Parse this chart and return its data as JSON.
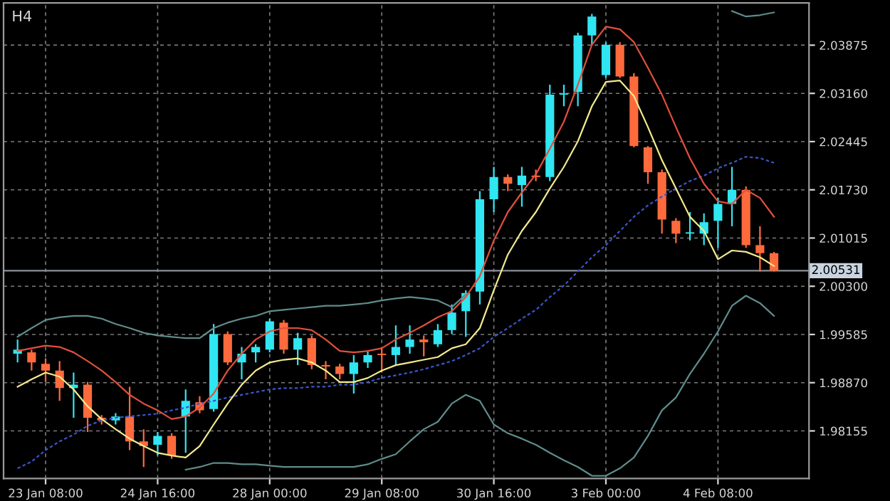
{
  "chart_data": {
    "type": "candlestick",
    "title": "H4",
    "categories": [
      null,
      null,
      "23 Jan 08:00",
      null,
      null,
      null,
      null,
      null,
      null,
      null,
      "24 Jan 16:00",
      null,
      null,
      null,
      null,
      null,
      null,
      null,
      "28 Jan 00:00",
      null,
      null,
      null,
      null,
      null,
      null,
      null,
      "29 Jan 08:00",
      null,
      null,
      null,
      null,
      null,
      null,
      null,
      "30 Jan 16:00",
      null,
      null,
      null,
      null,
      null,
      null,
      null,
      "3 Feb 00:00",
      null,
      null,
      null,
      null,
      null,
      null,
      null,
      "4 Feb 08:00",
      null,
      null,
      null,
      null
    ],
    "series": [
      {
        "type": "candlestick",
        "colors": [
          "#2fe6f2",
          "#ff6a3d",
          "#ff6a3d",
          "#ff6a3d",
          "#2fe6f2",
          "#ff6a3d",
          "#ff6a3d",
          "#2fe6f2",
          "#ff6a3d",
          "#ff6a3d",
          "#2fe6f2",
          "#ff6a3d",
          "#2fe6f2",
          "#ff6a3d",
          "#2fe6f2",
          "#ff6a3d",
          "#2fe6f2",
          "#2fe6f2",
          "#2fe6f2",
          "#ff6a3d",
          "#2fe6f2",
          "#ff6a3d",
          "#ff6a3d",
          "#ff6a3d",
          "#2fe6f2",
          "#2fe6f2",
          "#ff6a3d",
          "#2fe6f2",
          "#2fe6f2",
          "#ff6a3d",
          "#2fe6f2",
          "#2fe6f2",
          "#2fe6f2",
          "#2fe6f2",
          "#2fe6f2",
          "#ff6a3d",
          "#2fe6f2",
          "#ff6a3d",
          "#2fe6f2",
          "#2fe6f2",
          "#2fe6f2",
          "#2fe6f2",
          "#2fe6f2",
          "#ff6a3d",
          "#ff6a3d",
          "#ff6a3d",
          "#ff6a3d",
          "#ff6a3d",
          "#2fe6f2",
          "#2fe6f2",
          "#2fe6f2",
          "#2fe6f2",
          "#ff6a3d",
          "#ff6a3d",
          "#ff6a3d"
        ],
        "ohlc": [
          [
            1.993,
            1.9951,
            1.9917,
            1.9936
          ],
          [
            1.9932,
            1.9936,
            1.9905,
            1.9917
          ],
          [
            1.9915,
            1.9923,
            1.9888,
            1.9905
          ],
          [
            1.9905,
            1.9919,
            1.986,
            1.9879
          ],
          [
            1.9879,
            1.9902,
            1.9835,
            1.9884
          ],
          [
            1.9884,
            1.9888,
            1.9814,
            1.9835
          ],
          [
            1.9835,
            1.9839,
            1.9825,
            1.9831
          ],
          [
            1.9831,
            1.9842,
            1.9825,
            1.9837
          ],
          [
            1.9837,
            1.9881,
            1.9787,
            1.98
          ],
          [
            1.98,
            1.9818,
            1.9762,
            1.9793
          ],
          [
            1.9795,
            1.9814,
            1.9779,
            1.9808
          ],
          [
            1.9808,
            1.9812,
            1.9774,
            1.9779
          ],
          [
            1.9837,
            1.9877,
            1.9783,
            1.986
          ],
          [
            1.9858,
            1.9867,
            1.9842,
            1.9846
          ],
          [
            1.9848,
            1.9974,
            1.9844,
            1.9959
          ],
          [
            1.9959,
            1.9963,
            1.9913,
            1.9917
          ],
          [
            1.9917,
            1.994,
            1.9892,
            1.993
          ],
          [
            1.9932,
            1.9944,
            1.9917,
            1.994
          ],
          [
            1.9936,
            1.9982,
            1.9932,
            1.9978
          ],
          [
            1.9976,
            1.998,
            1.993,
            1.9936
          ],
          [
            1.9936,
            1.9961,
            1.9913,
            1.9953
          ],
          [
            1.9953,
            1.9957,
            1.9907,
            1.9913
          ],
          [
            1.9913,
            1.9919,
            1.9892,
            1.9911
          ],
          [
            1.9911,
            1.9915,
            1.9892,
            1.99
          ],
          [
            1.99,
            1.9928,
            1.9871,
            1.9917
          ],
          [
            1.9917,
            1.9934,
            1.9909,
            1.9928
          ],
          [
            1.993,
            1.9938,
            1.9902,
            1.9928
          ],
          [
            1.9928,
            1.9972,
            1.9913,
            1.994
          ],
          [
            1.994,
            1.9972,
            1.993,
            1.9951
          ],
          [
            1.9951,
            1.9957,
            1.9926,
            1.9947
          ],
          [
            1.9944,
            1.9974,
            1.994,
            1.9965
          ],
          [
            1.9965,
            2.0003,
            1.9959,
            1.9991
          ],
          [
            1.9993,
            2.0024,
            1.9955,
            2.002
          ],
          [
            2.0022,
            2.0171,
            2.0003,
            2.0159
          ],
          [
            2.0159,
            2.0207,
            2.014,
            2.0192
          ],
          [
            2.0192,
            2.0196,
            2.0171,
            2.0182
          ],
          [
            2.018,
            2.0207,
            2.0148,
            2.0194
          ],
          [
            2.0194,
            2.0203,
            2.0186,
            2.0192
          ],
          [
            2.0192,
            2.0329,
            2.0186,
            2.0314
          ],
          [
            2.0314,
            2.0329,
            2.0297,
            2.0316
          ],
          [
            2.0318,
            2.0406,
            2.0297,
            2.0402
          ],
          [
            2.0402,
            2.0434,
            2.0388,
            2.043
          ],
          [
            2.0343,
            2.0392,
            2.0339,
            2.0388
          ],
          [
            2.0388,
            2.0392,
            2.0339,
            2.0341
          ],
          [
            2.0341,
            2.0346,
            2.0236,
            2.0238
          ],
          [
            2.0236,
            2.0238,
            2.0182,
            2.0199
          ],
          [
            2.0199,
            2.0203,
            2.0108,
            2.0129
          ],
          [
            2.0127,
            2.0131,
            2.0094,
            2.0108
          ],
          [
            2.0108,
            2.014,
            2.0098,
            2.011
          ],
          [
            2.0108,
            2.0138,
            2.0091,
            2.0125
          ],
          [
            2.0127,
            2.0161,
            2.0087,
            2.0152
          ],
          [
            2.0152,
            2.0207,
            2.0119,
            2.0173
          ],
          [
            2.0173,
            2.0178,
            2.0087,
            2.0091
          ],
          [
            2.0091,
            2.0119,
            2.0052,
            2.0079
          ],
          [
            2.0079,
            2.0081,
            2.0052,
            2.0053
          ]
        ]
      },
      {
        "type": "line",
        "color": "#5f8c8c",
        "line_style": "solid",
        "values": [
          1.9955,
          1.9968,
          1.998,
          1.9984,
          1.9986,
          1.9986,
          1.9982,
          1.9974,
          1.9968,
          1.9961,
          1.9957,
          1.9955,
          1.9953,
          1.9953,
          1.9968,
          1.9976,
          1.9982,
          1.9986,
          1.9993,
          1.9995,
          1.9997,
          1.9999,
          2.0001,
          2.0001,
          2.0003,
          2.0005,
          2.0009,
          2.0012,
          2.0014,
          2.0012,
          2.0009,
          1.9999,
          2.0018,
          null,
          null,
          null,
          null,
          null,
          null,
          null,
          null,
          null,
          null,
          null,
          null,
          null,
          null,
          null,
          null,
          null,
          null,
          2.0438,
          2.043,
          2.0432,
          2.0436
        ]
      },
      {
        "type": "line",
        "color": "#5f8c8c",
        "line_style": "solid",
        "values": [
          null,
          null,
          null,
          null,
          null,
          null,
          null,
          null,
          null,
          null,
          null,
          null,
          1.9758,
          1.9762,
          1.9768,
          1.9768,
          1.9766,
          1.9766,
          1.9764,
          1.9762,
          1.9762,
          1.9762,
          1.9762,
          1.9762,
          1.9762,
          1.9766,
          1.9774,
          1.9781,
          1.98,
          1.9818,
          1.9829,
          1.9856,
          1.9869,
          1.986,
          1.9825,
          1.9812,
          1.9804,
          1.9795,
          1.9783,
          1.9772,
          1.9762,
          1.9749,
          1.9749,
          1.976,
          1.9776,
          1.9808,
          1.9846,
          1.9865,
          1.99,
          1.993,
          1.9963,
          2.0001,
          2.0016,
          2.0005,
          1.9986
        ]
      },
      {
        "type": "line",
        "color": "#3a55c8",
        "line_style": "dashed",
        "values": [
          1.976,
          1.977,
          1.9787,
          1.98,
          1.981,
          1.9823,
          1.9831,
          1.9835,
          1.9837,
          1.9839,
          1.9841,
          1.9846,
          1.985,
          1.9856,
          1.986,
          1.9865,
          1.9869,
          1.9873,
          1.9877,
          1.9879,
          1.9879,
          1.9881,
          1.9881,
          1.9884,
          1.9884,
          1.9888,
          1.9894,
          1.9898,
          1.9902,
          1.9907,
          1.9913,
          1.9919,
          1.9928,
          1.9938,
          1.9955,
          1.9968,
          1.9982,
          1.9995,
          2.0014,
          2.0031,
          2.0052,
          2.0073,
          2.0091,
          2.0112,
          2.0133,
          2.015,
          2.0163,
          2.0175,
          2.0186,
          2.0194,
          2.0205,
          2.0213,
          2.0222,
          2.022,
          2.0213
        ]
      },
      {
        "type": "line",
        "color": "#e0503c",
        "line_style": "solid",
        "values": [
          1.9934,
          1.9938,
          1.9942,
          1.994,
          1.9932,
          1.9919,
          1.9905,
          1.9888,
          1.9869,
          1.9856,
          1.9846,
          1.9833,
          1.9837,
          1.985,
          1.9871,
          1.9905,
          1.993,
          1.9951,
          1.9963,
          1.9968,
          1.9968,
          1.9965,
          1.9951,
          1.9934,
          1.9932,
          1.9934,
          1.9938,
          1.9951,
          1.9961,
          1.9972,
          1.9984,
          1.9993,
          2.0014,
          2.0045,
          2.0098,
          2.014,
          2.0169,
          2.0196,
          2.0234,
          2.0274,
          2.0329,
          2.0388,
          2.0415,
          2.0411,
          2.0392,
          2.0354,
          2.0314,
          2.0266,
          2.022,
          2.0182,
          2.0156,
          2.0152,
          2.0173,
          2.0161,
          2.0133
        ]
      },
      {
        "type": "line",
        "color": "#f2ea8c",
        "line_style": "solid",
        "values": [
          1.9881,
          1.9892,
          1.9902,
          1.9896,
          1.9877,
          1.9852,
          1.9833,
          1.9818,
          1.9804,
          1.9793,
          1.9783,
          1.9779,
          1.9776,
          1.9793,
          1.9825,
          1.9856,
          1.9884,
          1.9905,
          1.9917,
          1.9921,
          1.9923,
          1.9917,
          1.9905,
          1.9888,
          1.9888,
          1.9894,
          1.9905,
          1.9913,
          1.9917,
          1.9921,
          1.9925,
          1.9938,
          1.9944,
          1.9968,
          2.0024,
          2.0077,
          2.0112,
          2.014,
          2.0175,
          2.0207,
          2.0245,
          2.0297,
          2.0333,
          2.0335,
          2.0312,
          2.0266,
          2.0217,
          2.0175,
          2.0133,
          2.0112,
          2.007,
          2.0083,
          2.0081,
          2.0073,
          2.006
        ]
      }
    ],
    "ylim": [
      1.9745,
      2.045
    ],
    "yticks": [
      {
        "value": 1.98155,
        "label": "1.98155"
      },
      {
        "value": 1.9887,
        "label": "1.98870"
      },
      {
        "value": 1.99585,
        "label": "1.99585"
      },
      {
        "value": 2.003,
        "label": "2.00300"
      },
      {
        "value": 2.01015,
        "label": "2.01015"
      },
      {
        "value": 2.0173,
        "label": "2.01730"
      },
      {
        "value": 2.02445,
        "label": "2.02445"
      },
      {
        "value": 2.0316,
        "label": "2.03160"
      },
      {
        "value": 2.03875,
        "label": "2.03875"
      }
    ],
    "ref_lines": [
      {
        "axis": "y",
        "value": 2.00531,
        "label": "2.00531",
        "color": "#8a8f98"
      }
    ],
    "grid": true
  }
}
